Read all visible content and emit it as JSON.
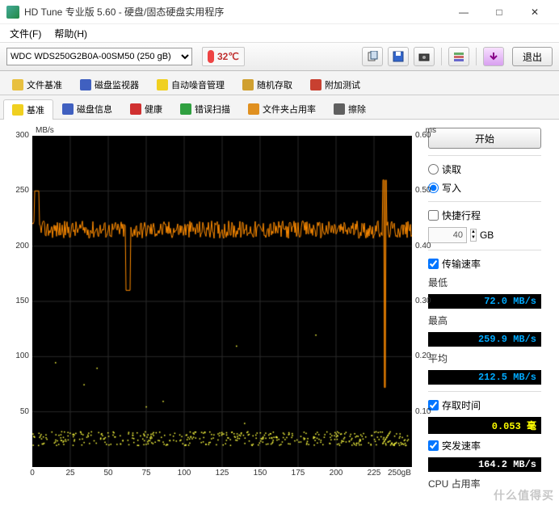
{
  "window": {
    "title": "HD Tune 专业版 5.60 - 硬盘/固态硬盘实用程序",
    "menu": {
      "file": "文件(F)",
      "help": "帮助(H)"
    },
    "controls": {
      "min": "—",
      "max": "□",
      "close": "✕"
    }
  },
  "toolbar": {
    "device": "WDC WDS250G2B0A-00SM50 (250 gB)",
    "temperature": "32℃",
    "temp_color": "#c03030",
    "exit": "退出",
    "icons": [
      "copy",
      "save",
      "camera",
      "settings",
      "refresh"
    ]
  },
  "tabs_top": [
    {
      "icon": "#e8c040",
      "label": "文件基准"
    },
    {
      "icon": "#4060c0",
      "label": "磁盘监视器"
    },
    {
      "icon": "#f0d020",
      "label": "自动噪音管理"
    },
    {
      "icon": "#d0a030",
      "label": "随机存取"
    },
    {
      "icon": "#c84030",
      "label": "附加测试"
    }
  ],
  "tabs_bottom": [
    {
      "icon": "#f0d020",
      "label": "基准",
      "active": true
    },
    {
      "icon": "#4060c0",
      "label": "磁盘信息"
    },
    {
      "icon": "#d03030",
      "label": "健康"
    },
    {
      "icon": "#30a040",
      "label": "错误扫描"
    },
    {
      "icon": "#e09020",
      "label": "文件夹占用率"
    },
    {
      "icon": "#606060",
      "label": "擦除"
    }
  ],
  "chart": {
    "type": "line+scatter",
    "y_left_label": "MB/s",
    "y_right_label": "ms",
    "y_left_ticks": [
      50,
      100,
      150,
      200,
      250,
      300
    ],
    "y_right_ticks": [
      "0.10",
      "0.20",
      "0.30",
      "0.40",
      "0.50",
      "0.60"
    ],
    "x_ticks": [
      0,
      25,
      50,
      75,
      100,
      125,
      150,
      175,
      200,
      225
    ],
    "x_max_label": "250gB",
    "y_left_max": 300,
    "y_right_max": 0.6,
    "x_max": 250,
    "bg_color": "#000000",
    "grid_color": "#2a2a2a",
    "transfer_line": {
      "color": "#ff8c00",
      "baseline": 215,
      "noise": 8,
      "dips": [
        {
          "x": 3,
          "y": 250
        },
        {
          "x": 63,
          "y": 160
        },
        {
          "x": 232,
          "y": 260,
          "down": 72
        }
      ]
    },
    "access_scatter": {
      "color": "#ffff40",
      "band_low": 0.04,
      "band_high": 0.065,
      "outliers": [
        0.12,
        0.15,
        0.19,
        0.24,
        0.22,
        0.11,
        0.08,
        0.18
      ]
    }
  },
  "side": {
    "start": "开始",
    "mode": {
      "read": "读取",
      "write": "写入",
      "selected": "write"
    },
    "shortstroke": {
      "label": "快捷行程",
      "checked": false,
      "value": "40",
      "unit": "GB"
    },
    "transfer": {
      "label": "传输速率",
      "checked": true,
      "min_label": "最低",
      "min_value": "72.0 MB/s",
      "max_label": "最高",
      "max_value": "259.9 MB/s",
      "avg_label": "平均",
      "avg_value": "212.5 MB/s"
    },
    "access": {
      "label": "存取时间",
      "checked": true,
      "value": "0.053 毫"
    },
    "burst": {
      "label": "突发速率",
      "checked": true,
      "value": "164.2 MB/s"
    },
    "cpu": {
      "label": "CPU 占用率"
    }
  },
  "watermark": "什么值得买"
}
